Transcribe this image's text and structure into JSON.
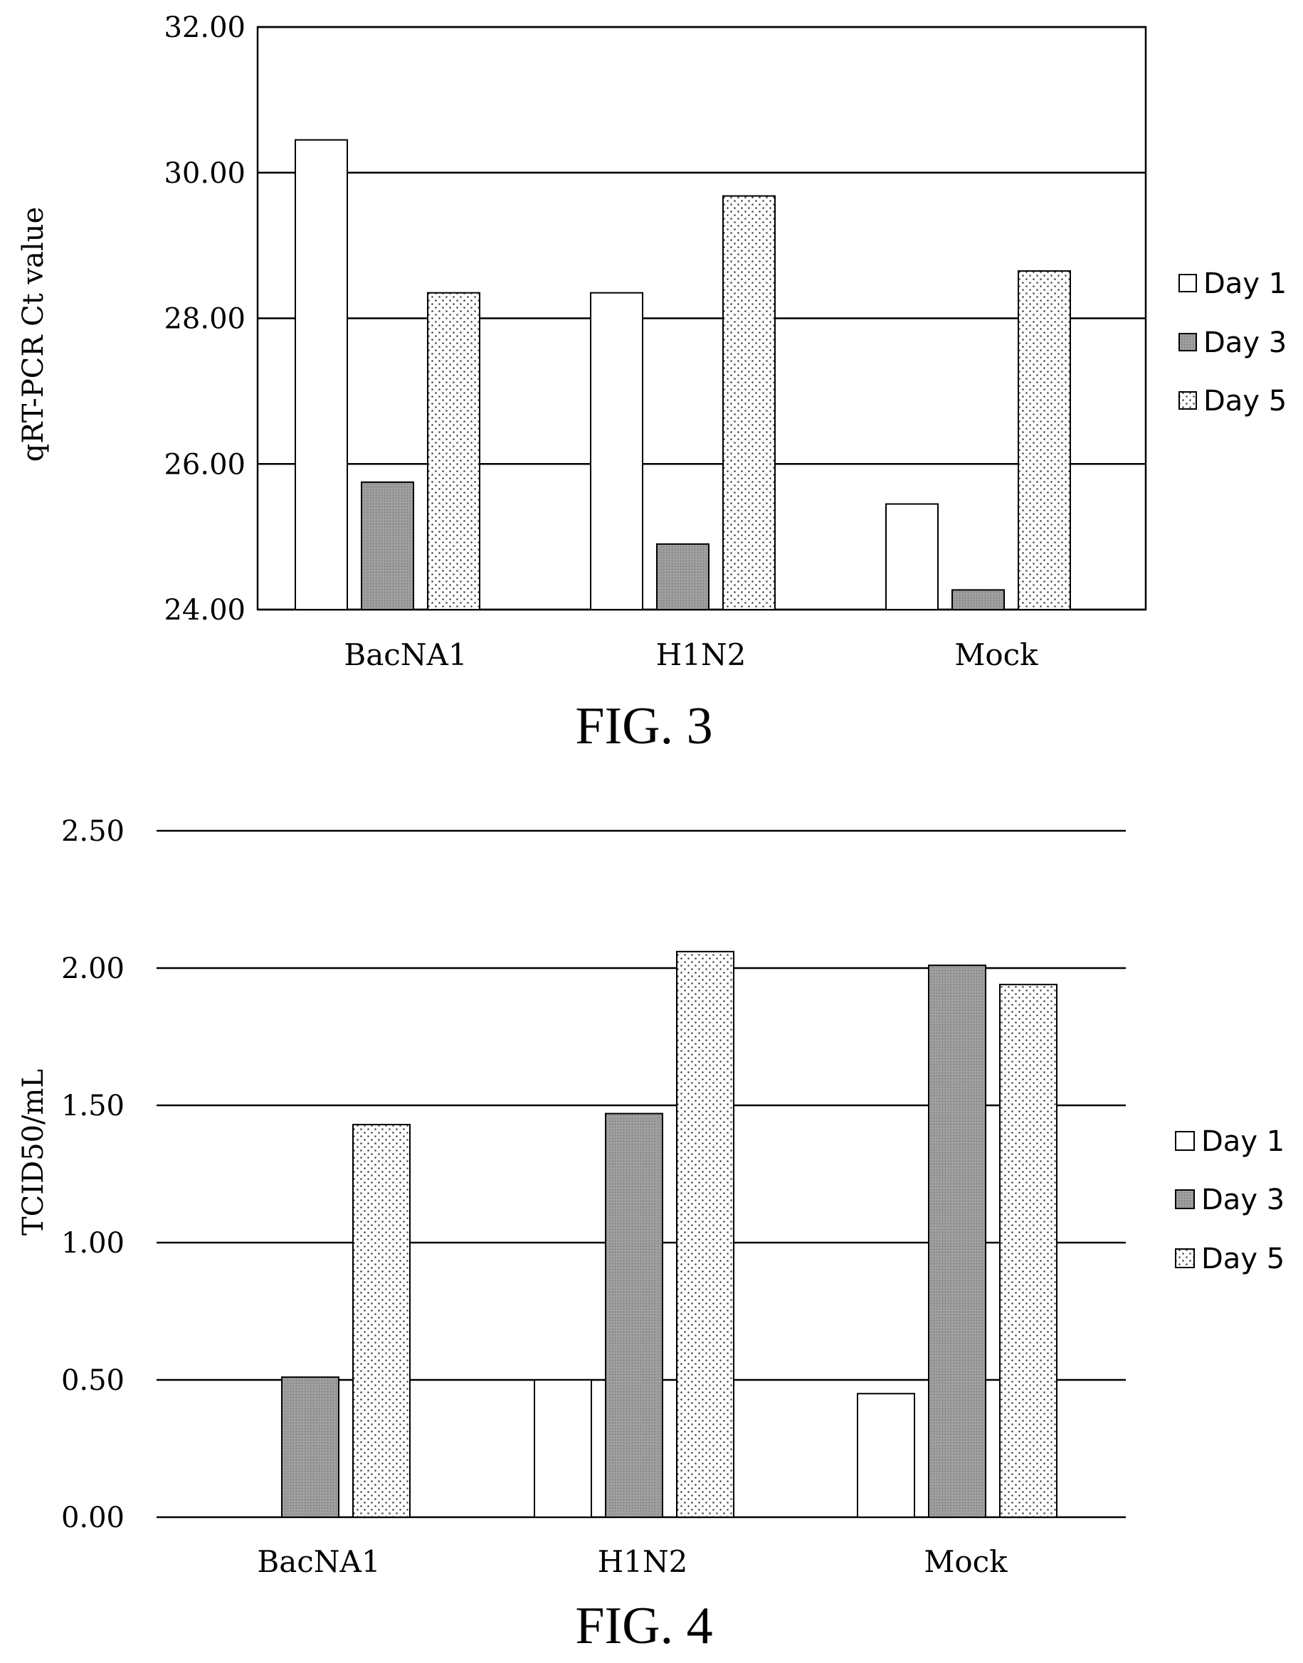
{
  "chart_data": [
    {
      "type": "bar",
      "caption": "FIG. 3",
      "categories": [
        "BacNA1",
        "H1N2",
        "Mock"
      ],
      "series": [
        {
          "name": "Day 1",
          "values": [
            30.45,
            28.35,
            25.45
          ]
        },
        {
          "name": "Day 3",
          "values": [
            25.75,
            24.9,
            24.27
          ]
        },
        {
          "name": "Day 5",
          "values": [
            28.35,
            29.68,
            28.65
          ]
        }
      ],
      "ylabel": "qRT-PCR Ct value",
      "ylim": [
        24.0,
        32.0
      ],
      "yticks": [
        "24.00",
        "26.00",
        "28.00",
        "30.00",
        "32.00"
      ],
      "grid": true,
      "plot_border": true,
      "legend": "right"
    },
    {
      "type": "bar",
      "caption": "FIG. 4",
      "categories": [
        "BacNA1",
        "H1N2",
        "Mock"
      ],
      "series": [
        {
          "name": "Day 1",
          "values": [
            0.0,
            0.5,
            0.45
          ]
        },
        {
          "name": "Day 3",
          "values": [
            0.51,
            1.47,
            2.01
          ]
        },
        {
          "name": "Day 5",
          "values": [
            1.43,
            2.06,
            1.94
          ]
        }
      ],
      "ylabel": "TCID50/mL",
      "ylim": [
        0.0,
        2.5
      ],
      "yticks": [
        "0.00",
        "0.50",
        "1.00",
        "1.50",
        "2.00",
        "2.50"
      ],
      "grid": true,
      "plot_border": false,
      "legend": "right"
    }
  ],
  "colors": {
    "day1_fill": "#ffffff",
    "day3_fill": "#9a9a9a",
    "day5_fill": "#ffffff",
    "day5_dots": "#444444",
    "line": "#000000"
  }
}
